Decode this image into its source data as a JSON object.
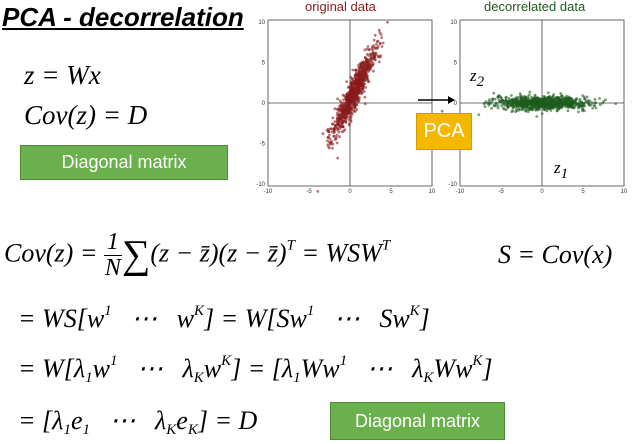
{
  "title": "PCA - decorrelation",
  "eq1": "z = Wx",
  "eq2": "Cov(z) = D",
  "badge_top": "Diagonal matrix",
  "badge_bottom": "Diagonal matrix",
  "pca_label": "PCA",
  "left_plot": {
    "title": "original data",
    "color": "#8b1a1a",
    "ticks": {
      "x": [
        "-10",
        "-5",
        "0",
        "5",
        "10"
      ],
      "y": [
        "10",
        "5",
        "0",
        "-5",
        "-10"
      ]
    }
  },
  "right_plot": {
    "title": "decorrelated data",
    "color": "#1e5c1e",
    "ticks": {
      "x": [
        "-10",
        "-5",
        "0",
        "5",
        "10"
      ],
      "y": [
        "10",
        "5",
        "0",
        "-5",
        "-10"
      ]
    },
    "z2": "z",
    "z2_sub": "2",
    "z1": "z",
    "z1_sub": "1"
  },
  "colors": {
    "left_points": "#8b1a1a",
    "right_points": "#1e5c1e",
    "green": "#6ab04c",
    "pca": "#f6b700"
  }
}
